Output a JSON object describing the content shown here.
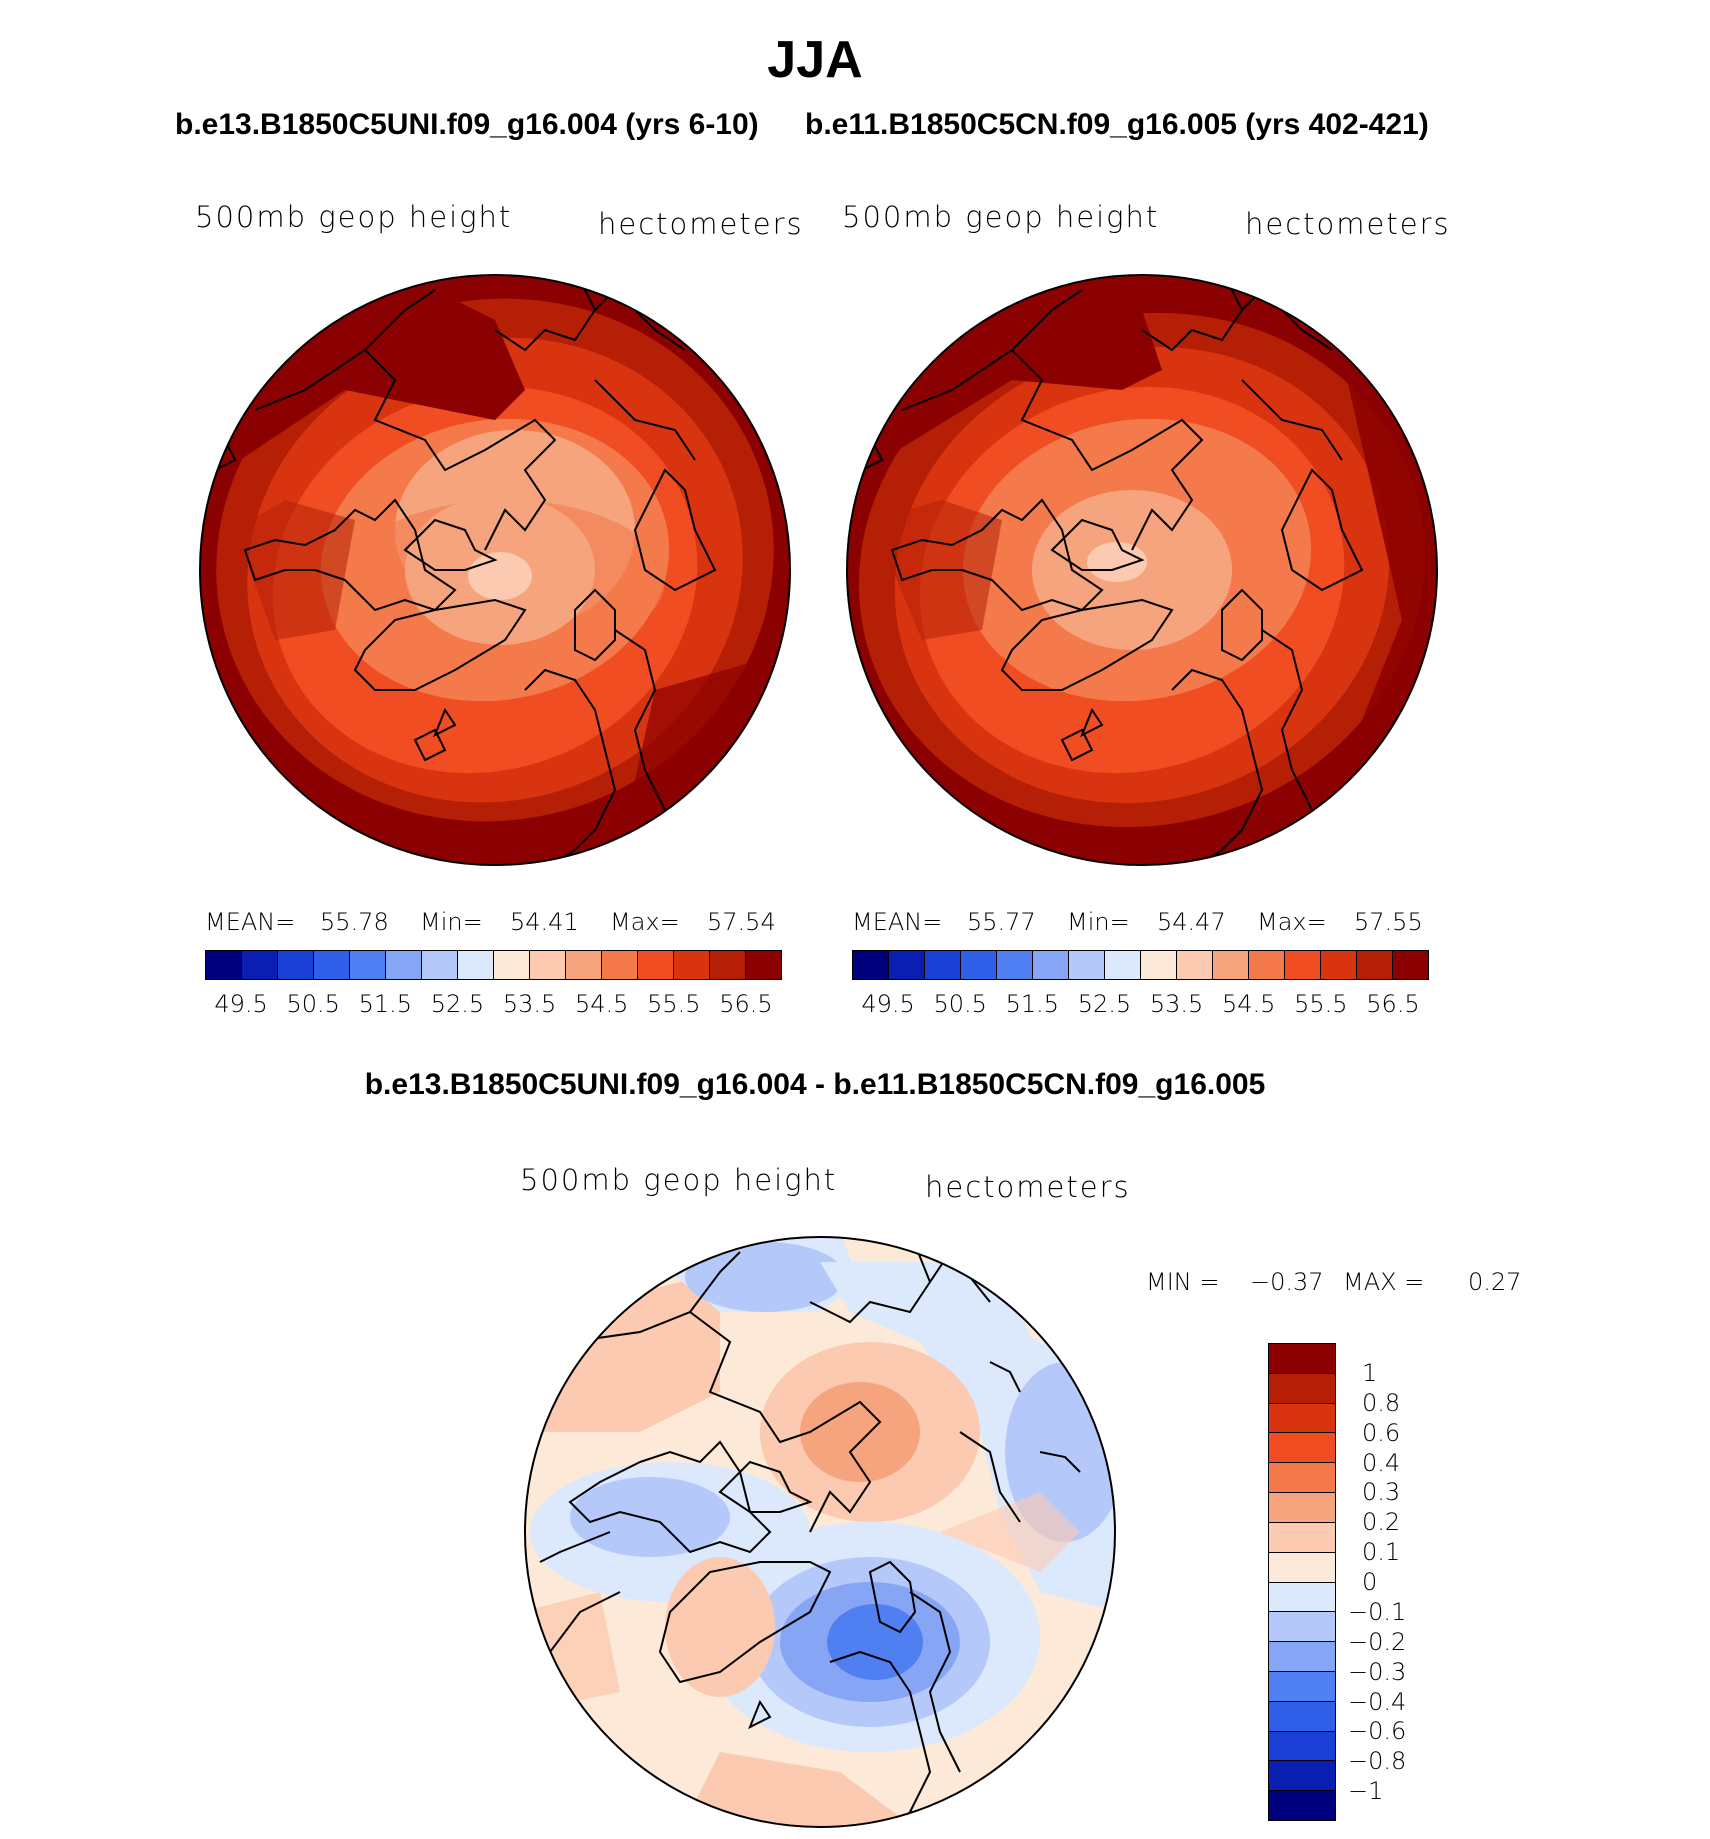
{
  "title": "JJA",
  "diff_title": "b.e13.B1850C5UNI.f09_g16.004 - b.e11.B1850C5CN.f09_g16.005",
  "panels": [
    {
      "case_title": "b.e13.B1850C5UNI.f09_g16.004 (yrs 6-10)",
      "left_label": "500mb geop height",
      "right_label": "hectometers",
      "mean_label": "MEAN=",
      "mean": "55.78",
      "min_label": "Min=",
      "min": "54.41",
      "max_label": "Max=",
      "max": "57.54"
    },
    {
      "case_title": "b.e11.B1850C5CN.f09_g16.005 (yrs 402-421)",
      "left_label": "500mb geop height",
      "right_label": "hectometers",
      "mean_label": "MEAN=",
      "mean": "55.77",
      "min_label": "Min=",
      "min": "54.47",
      "max_label": "Max=",
      "max": "57.55"
    }
  ],
  "abs_colorbar": {
    "colors": [
      "#00007f",
      "#0a1eb4",
      "#1a3fd6",
      "#2f5fe8",
      "#4f7ff0",
      "#86a6f5",
      "#b4c8fa",
      "#dce8fc",
      "#fde9d8",
      "#fbcab0",
      "#f6a47e",
      "#f47a4c",
      "#f04e22",
      "#d93410",
      "#b51f05",
      "#8b0000"
    ],
    "tick_labels": [
      "49.5",
      "50.5",
      "51.5",
      "52.5",
      "53.5",
      "54.5",
      "55.5",
      "56.5"
    ]
  },
  "diff_panel": {
    "left_label": "500mb geop height",
    "right_label": "hectometers",
    "min_label": "MIN =",
    "min": "−0.37",
    "max_label": "MAX =",
    "max": "0.27",
    "colors_top_to_bottom": [
      "#8b0000",
      "#b51f05",
      "#d93410",
      "#f04e22",
      "#f47a4c",
      "#f6a47e",
      "#fbcab0",
      "#fde9d8",
      "#dce8fc",
      "#b4c8fa",
      "#86a6f5",
      "#4f7ff0",
      "#2f5fe8",
      "#1a3fd6",
      "#0a1eb4",
      "#00007f"
    ],
    "tick_labels": [
      "1",
      "0.8",
      "0.6",
      "0.4",
      "0.3",
      "0.2",
      "0.1",
      "0",
      "−0.1",
      "−0.2",
      "−0.3",
      "−0.4",
      "−0.6",
      "−0.8",
      "−1"
    ]
  }
}
